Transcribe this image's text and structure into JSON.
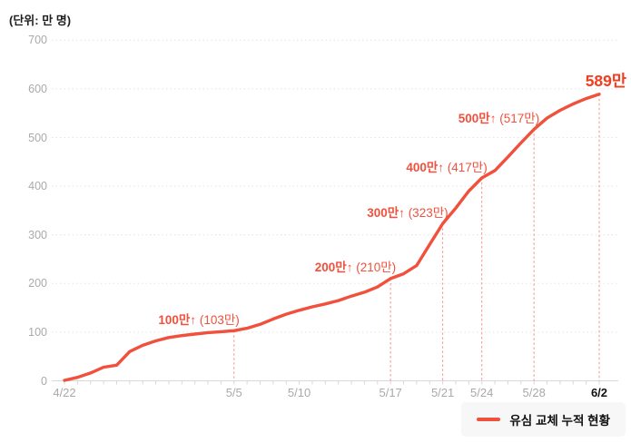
{
  "unit_note": "(단위: 만 명)",
  "legend": {
    "label": "유심 교체 누적 현황"
  },
  "colors": {
    "line": "#f0503c",
    "annotation": "#f0503c",
    "final_label": "#f53c1d",
    "dashed_guide": "#f2705f",
    "grid": "#e4e4e4",
    "axis": "#d8d8d8",
    "tick": "#d8d8d8",
    "tick_label": "#a9a9a9",
    "dark_label": "#111111",
    "legend_bg": "#f7f7f7",
    "background": "#ffffff"
  },
  "chart_data": {
    "type": "line",
    "title": "",
    "unit_note": "(단위: 만 명)",
    "ylabel": "",
    "xlabel": "",
    "ylim": [
      0,
      700
    ],
    "y_ticks": [
      0,
      100,
      200,
      300,
      400,
      500,
      600,
      700
    ],
    "grid": "horizontal-dotted",
    "legend_position": "bottom-right",
    "series": [
      {
        "name": "유심 교체 누적 현황",
        "x": [
          "4/22",
          "4/23",
          "4/24",
          "4/25",
          "4/26",
          "4/27",
          "4/28",
          "4/29",
          "4/30",
          "5/1",
          "5/2",
          "5/3",
          "5/4",
          "5/5",
          "5/6",
          "5/7",
          "5/8",
          "5/9",
          "5/10",
          "5/11",
          "5/12",
          "5/13",
          "5/14",
          "5/15",
          "5/16",
          "5/17",
          "5/18",
          "5/19",
          "5/20",
          "5/21",
          "5/22",
          "5/23",
          "5/24",
          "5/25",
          "5/26",
          "5/27",
          "5/28",
          "5/29",
          "5/30",
          "5/31",
          "6/1",
          "6/2"
        ],
        "values": [
          1,
          7,
          16,
          28,
          32,
          60,
          73,
          82,
          89,
          93,
          96,
          99,
          101,
          103,
          108,
          116,
          127,
          137,
          145,
          152,
          158,
          165,
          174,
          182,
          193,
          210,
          220,
          237,
          280,
          323,
          355,
          390,
          417,
          432,
          460,
          489,
          517,
          540,
          556,
          569,
          580,
          589
        ]
      }
    ],
    "x_tick_labels": [
      {
        "label": "4/22",
        "index": 0,
        "emphasis": false
      },
      {
        "label": "5/5",
        "index": 13,
        "emphasis": false
      },
      {
        "label": "5/10",
        "index": 18,
        "emphasis": false
      },
      {
        "label": "5/17",
        "index": 25,
        "emphasis": false
      },
      {
        "label": "5/21",
        "index": 29,
        "emphasis": false
      },
      {
        "label": "5/24",
        "index": 32,
        "emphasis": false
      },
      {
        "label": "5/28",
        "index": 36,
        "emphasis": false
      },
      {
        "label": "6/2",
        "index": 41,
        "emphasis": true
      }
    ],
    "annotations": [
      {
        "date": "5/5",
        "index": 13,
        "text_bold": "100만↑",
        "text_paren": "(103만)",
        "value": 103,
        "final": false
      },
      {
        "date": "5/17",
        "index": 25,
        "text_bold": "200만↑",
        "text_paren": "(210만)",
        "value": 210,
        "final": false
      },
      {
        "date": "5/21",
        "index": 29,
        "text_bold": "300만↑",
        "text_paren": "(323만)",
        "value": 323,
        "final": false
      },
      {
        "date": "5/24",
        "index": 32,
        "text_bold": "400만↑",
        "text_paren": "(417만)",
        "value": 417,
        "final": false
      },
      {
        "date": "5/28",
        "index": 36,
        "text_bold": "500만↑",
        "text_paren": "(517만)",
        "value": 517,
        "final": false
      },
      {
        "date": "6/2",
        "index": 41,
        "text_bold": "589만",
        "text_paren": "",
        "value": 589,
        "final": true
      }
    ]
  }
}
